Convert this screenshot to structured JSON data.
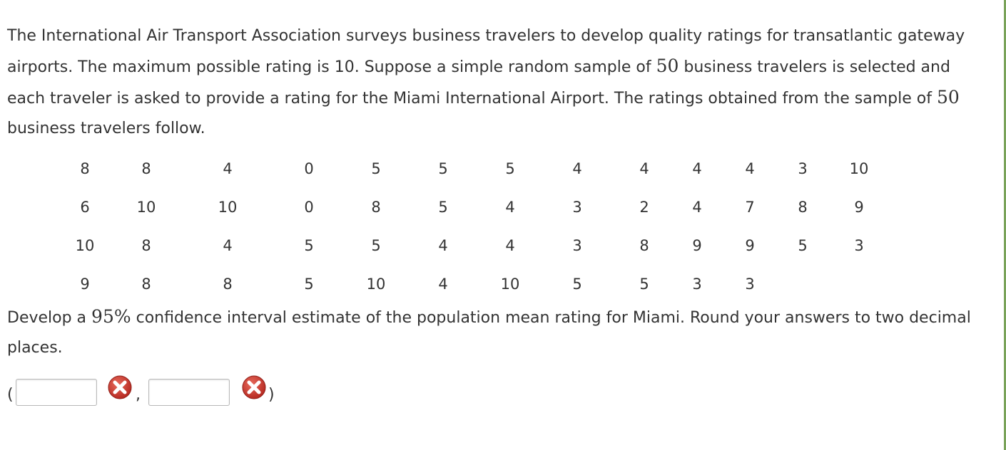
{
  "problem": {
    "part1": "The International Air Transport Association surveys business travelers to develop quality ratings for transatlantic gateway airports. The maximum possible rating is 10. Suppose a simple random sample of ",
    "n": "50",
    "part2": " business travelers is selected and each traveler is asked to provide a rating for the Miami International Airport. The ratings obtained from the sample of ",
    "part3": " business travelers follow."
  },
  "ratings": [
    [
      "8",
      "8",
      "4",
      "0",
      "5",
      "5",
      "5",
      "4",
      "4",
      "4",
      "4",
      "3",
      "10"
    ],
    [
      "6",
      "10",
      "10",
      "0",
      "8",
      "5",
      "4",
      "3",
      "2",
      "4",
      "7",
      "8",
      "9"
    ],
    [
      "10",
      "8",
      "4",
      "5",
      "5",
      "4",
      "4",
      "3",
      "8",
      "9",
      "9",
      "5",
      "3"
    ],
    [
      "9",
      "8",
      "8",
      "5",
      "10",
      "4",
      "10",
      "5",
      "5",
      "3",
      "3",
      "",
      ""
    ]
  ],
  "question": {
    "part1": "Develop a ",
    "confidence": "95%",
    "part2": " confidence interval estimate of the population mean rating for Miami. Round your answers to two decimal places."
  },
  "answer": {
    "open_paren": "(",
    "separator": ",",
    "close_paren": ")",
    "lower_value": "",
    "upper_value": "",
    "status_icon": "incorrect-x-icon",
    "status_color": "#c0392b"
  }
}
